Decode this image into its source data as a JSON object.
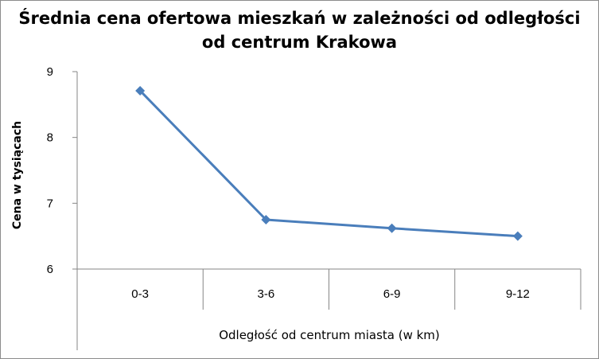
{
  "chart_data": {
    "type": "line",
    "title_lines": [
      "Średnia cena ofertowa mieszkań w zależności od odległości",
      "od centrum Krakowa"
    ],
    "categories": [
      "0-3",
      "3-6",
      "6-9",
      "9-12"
    ],
    "series": [
      {
        "values": [
          8.71,
          6.75,
          6.62,
          6.5
        ],
        "color": "#4a7ebb",
        "marker": "diamond"
      }
    ],
    "xlabel": "Odległość od centrum miasta (w km)",
    "ylabel": "Cena w tysiącach",
    "ylim": [
      6,
      9
    ],
    "yticks": [
      "6",
      "7",
      "8",
      "9"
    ],
    "grid": false,
    "legend": "none"
  }
}
